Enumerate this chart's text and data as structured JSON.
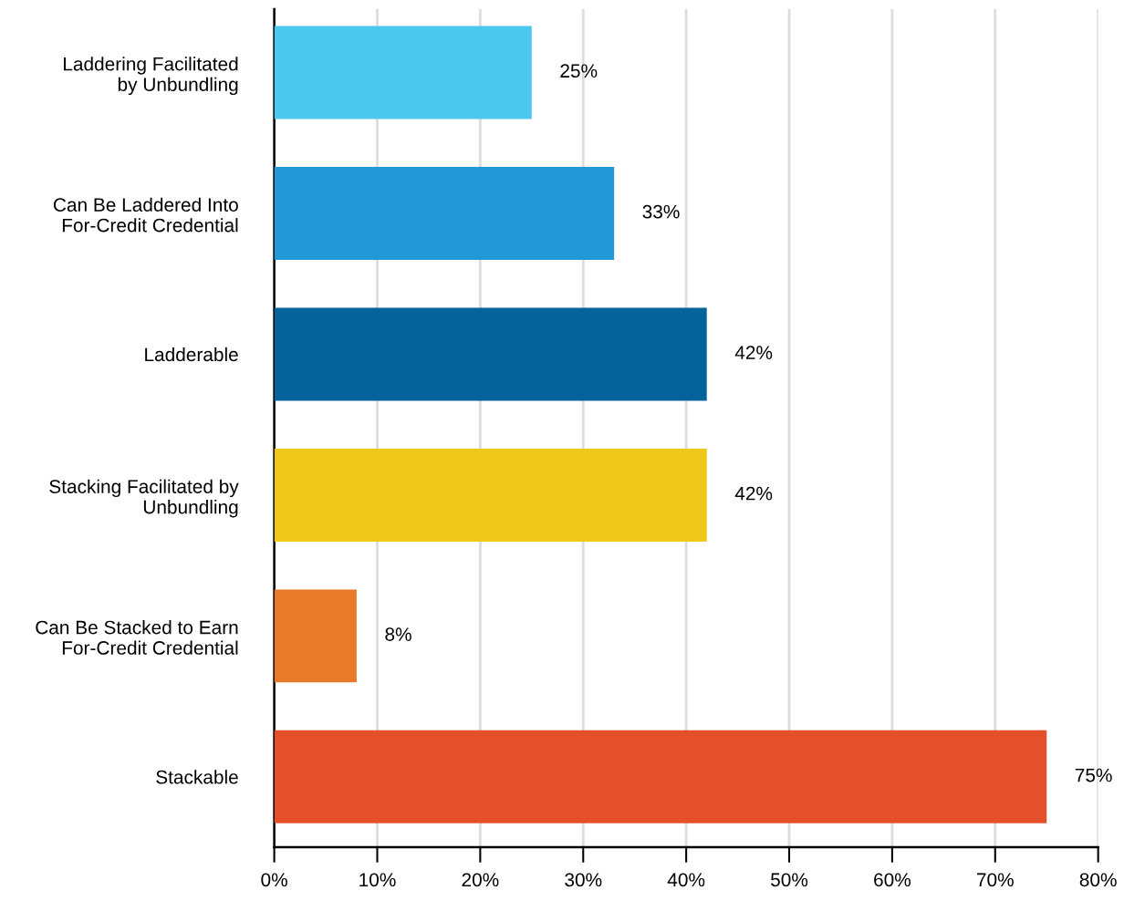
{
  "chart_data": {
    "type": "bar",
    "orientation": "horizontal",
    "categories": [
      "Laddering Facilitated\nby Unbundling",
      "Can Be Laddered Into\nFor-Credit Credential",
      "Ladderable",
      "Stacking Facilitated by\nUnbundling",
      "Can Be Stacked to Earn\nFor-Credit Credential",
      "Stackable"
    ],
    "values": [
      25,
      33,
      42,
      42,
      8,
      75
    ],
    "colors": [
      "#4ac8ee",
      "#2299d6",
      "#04639a",
      "#efc61a",
      "#e87a2a",
      "#e5502a"
    ],
    "value_labels": [
      "25%",
      "33%",
      "42%",
      "42%",
      "8%",
      "75%"
    ],
    "xlim": [
      0,
      80
    ],
    "xticks": [
      {
        "value": 0,
        "label": "0%"
      },
      {
        "value": 10,
        "label": "10%"
      },
      {
        "value": 20,
        "label": "20%"
      },
      {
        "value": 30,
        "label": "30%"
      },
      {
        "value": 40,
        "label": "40%"
      },
      {
        "value": 50,
        "label": "50%"
      },
      {
        "value": 60,
        "label": "60%"
      },
      {
        "value": 70,
        "label": "70%"
      },
      {
        "value": 80,
        "label": "80%"
      }
    ],
    "grid": "x"
  }
}
